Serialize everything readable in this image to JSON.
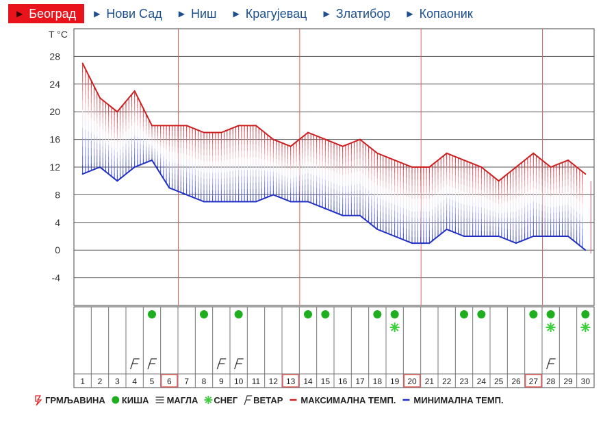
{
  "tabs": [
    {
      "label": "Београд",
      "active": true
    },
    {
      "label": "Нови Сад",
      "active": false
    },
    {
      "label": "Ниш",
      "active": false
    },
    {
      "label": "Крагујевац",
      "active": false
    },
    {
      "label": "Златибор",
      "active": false
    },
    {
      "label": "Копаоник",
      "active": false
    }
  ],
  "colors": {
    "max": "#cc1f1f",
    "min": "#1f2fc4",
    "rain": "#1fae1f",
    "snow": "#3ccf3c",
    "active_tab": "#e8131b",
    "tab_text": "#1d4f8f",
    "week_marker": "#e06060"
  },
  "chart_data": {
    "type": "line",
    "ylabel": "T °C",
    "ylim": [
      -8,
      32
    ],
    "yticks": [
      28,
      24,
      20,
      16,
      12,
      8,
      4,
      0,
      -4
    ],
    "x": [
      1,
      2,
      3,
      4,
      5,
      6,
      7,
      8,
      9,
      10,
      11,
      12,
      13,
      14,
      15,
      16,
      17,
      18,
      19,
      20,
      21,
      22,
      23,
      24,
      25,
      26,
      27,
      28,
      29,
      30
    ],
    "series": [
      {
        "name": "МАКСИМАЛНА ТЕМП.",
        "values": [
          27,
          22,
          20,
          23,
          18,
          18,
          18,
          17,
          17,
          18,
          18,
          16,
          15,
          17,
          16,
          15,
          16,
          14,
          13,
          12,
          12,
          14,
          13,
          12,
          10,
          12,
          14,
          12,
          13,
          11
        ]
      },
      {
        "name": "МИНИМАЛНА ТЕМП.",
        "values": [
          11,
          12,
          10,
          12,
          13,
          9,
          8,
          7,
          7,
          7,
          7,
          8,
          7,
          7,
          6,
          5,
          5,
          3,
          2,
          1,
          1,
          3,
          2,
          2,
          2,
          1,
          2,
          2,
          2,
          0
        ]
      }
    ],
    "highlighted_days": [
      6,
      13,
      20,
      27
    ],
    "day_rows": {
      "rain": [
        5,
        8,
        10,
        14,
        15,
        18,
        19,
        23,
        24,
        27,
        28,
        30
      ],
      "snow": [
        19,
        28,
        30
      ],
      "wind": [
        4,
        5,
        9,
        10,
        28
      ]
    },
    "legend": [
      {
        "symbol": "thunder",
        "label": "ГРМЉАВИНА"
      },
      {
        "symbol": "rain",
        "label": "КИША"
      },
      {
        "symbol": "fog",
        "label": "МАГЛА"
      },
      {
        "symbol": "snow",
        "label": "СНЕГ"
      },
      {
        "symbol": "wind",
        "label": "ВЕТАР"
      },
      {
        "symbol": "max",
        "label": "МАКСИМАЛНА ТЕМП."
      },
      {
        "symbol": "min",
        "label": "МИНИМАЛНА ТЕМП."
      }
    ]
  }
}
